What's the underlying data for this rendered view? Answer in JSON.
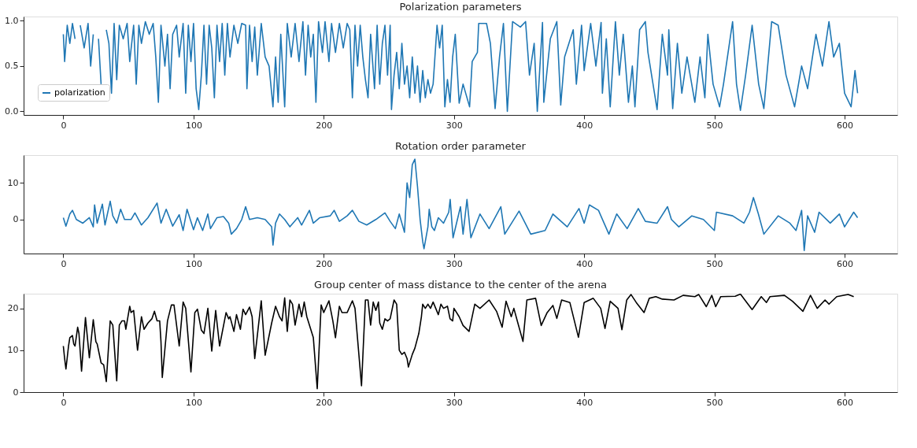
{
  "chart_data": [
    {
      "type": "line",
      "title": "Polarization parameters",
      "legend": "bottom left",
      "xlim": [
        -30.5,
        640.5
      ],
      "xticks": [
        0,
        100,
        200,
        300,
        400,
        500,
        600
      ],
      "ylim": [
        -0.04,
        1.046
      ],
      "yticks": [
        {
          "value": 0,
          "label": "0.0"
        },
        {
          "value": 0.5,
          "label": "0.5"
        },
        {
          "value": 1,
          "label": "1.0"
        }
      ],
      "series": [
        {
          "name": "polarization",
          "color": "#1f77b4",
          "x": [
            0,
            1,
            3,
            5,
            7,
            9,
            11,
            13,
            16,
            19,
            21,
            23,
            25,
            27,
            29,
            31,
            33,
            35,
            37,
            39,
            41,
            43,
            46,
            49,
            51,
            54,
            56,
            58,
            60,
            63,
            66,
            69,
            71,
            73,
            75,
            78,
            80,
            82,
            84,
            87,
            89,
            92,
            94,
            96,
            98,
            100,
            102,
            104,
            106,
            108,
            110,
            112,
            114,
            116,
            118,
            120,
            122,
            124,
            126,
            128,
            131,
            134,
            137,
            140,
            141,
            143,
            145,
            147,
            149,
            152,
            155,
            158,
            160,
            161,
            163,
            165,
            167,
            170,
            172,
            175,
            178,
            181,
            184,
            186,
            188,
            190,
            192,
            194,
            196,
            199,
            201,
            204,
            206,
            209,
            212,
            215,
            218,
            220,
            222,
            224,
            226,
            228,
            230,
            232,
            234,
            236,
            239,
            241,
            243,
            245,
            247,
            249,
            251,
            252,
            254,
            256,
            258,
            260,
            262,
            264,
            266,
            268,
            270,
            272,
            274,
            276,
            278,
            280,
            282,
            284,
            287,
            289,
            291,
            293,
            295,
            297,
            299,
            301,
            304,
            307,
            312,
            314,
            318,
            319,
            325,
            328,
            331.6,
            335,
            338,
            341,
            345,
            351,
            355,
            358,
            361.6,
            364,
            368,
            369,
            374,
            379,
            382,
            385,
            391.6,
            394,
            398,
            400,
            405,
            409,
            413,
            414,
            417,
            420,
            424,
            427,
            430,
            434,
            437,
            439,
            442.6,
            447,
            449,
            456,
            460,
            464,
            465,
            468,
            471.6,
            475,
            479,
            485,
            489,
            492.7,
            495,
            499,
            504,
            507,
            514,
            517,
            520,
            524,
            529,
            534,
            538,
            544,
            549,
            555,
            561.6,
            567,
            571.6,
            578,
            583,
            588,
            591.6,
            596,
            600,
            605,
            608,
            610
          ],
          "values": [
            0.85,
            0.55,
            0.95,
            0.75,
            0.97,
            0.8,
            null,
            0.95,
            0.7,
            0.97,
            0.5,
            0.85,
            null,
            0.8,
            0.3,
            null,
            0.9,
            0.75,
            0.2,
            0.97,
            0.35,
            0.95,
            0.8,
            0.97,
            0.55,
            0.95,
            0.3,
            0.95,
            0.75,
            0.99,
            0.85,
            0.97,
            0.6,
            0.1,
            0.95,
            0.5,
            0.85,
            0.25,
            0.85,
            0.95,
            0.6,
            0.97,
            0.2,
            0.95,
            0.55,
            0.97,
            0.25,
            0.02,
            0.4,
            0.95,
            0.3,
            0.95,
            0.7,
            0.15,
            0.95,
            0.55,
            0.97,
            0.4,
            0.97,
            0.6,
            0.95,
            0.75,
            0.97,
            0.95,
            0.25,
            0.95,
            0.55,
            0.93,
            0.4,
            0.97,
            0.6,
            0.5,
            0.2,
            0.05,
            0.6,
            0.1,
            0.85,
            0.05,
            0.97,
            0.6,
            0.97,
            0.55,
            0.99,
            0.4,
            0.95,
            0.6,
            0.85,
            0.1,
            0.99,
            0.65,
            0.99,
            0.55,
            0.97,
            0.65,
            0.97,
            0.7,
            0.97,
            0.9,
            0.15,
            0.95,
            0.5,
            0.95,
            0.6,
            0.35,
            0.15,
            0.85,
            0.25,
            0.95,
            0.3,
            0.75,
            0.95,
            0.4,
            0.95,
            0.02,
            0.4,
            0.65,
            0.25,
            0.75,
            0.3,
            0.5,
            0.15,
            0.6,
            0.2,
            0.5,
            0.1,
            0.45,
            0.15,
            0.35,
            0.2,
            0.3,
            0.95,
            0.7,
            0.95,
            0.05,
            0.35,
            0.1,
            0.6,
            0.85,
            0.09,
            0.3,
            0.05,
            0.55,
            0.65,
            0.97,
            0.97,
            0.75,
            0.03,
            0.6,
            0.97,
            0.0,
            0.99,
            0.93,
            0.99,
            0.4,
            0.75,
            0.0,
            0.98,
            0.1,
            0.8,
            0.99,
            0.07,
            0.6,
            0.9,
            0.3,
            0.95,
            0.45,
            0.97,
            0.5,
            0.98,
            0.2,
            0.8,
            0.05,
            0.99,
            0.4,
            0.85,
            0.1,
            0.5,
            0.05,
            0.9,
            0.99,
            0.65,
            0.02,
            0.85,
            0.4,
            0.9,
            0.03,
            0.75,
            0.2,
            0.6,
            0.1,
            0.6,
            0.15,
            0.85,
            0.3,
            0.05,
            0.3,
            0.99,
            0.3,
            0.01,
            0.4,
            0.95,
            0.3,
            0.03,
            0.99,
            0.95,
            0.4,
            0.05,
            0.5,
            0.25,
            0.85,
            0.5,
            0.99,
            0.6,
            0.75,
            0.2,
            0.05,
            0.45,
            0.2
          ]
        }
      ]
    },
    {
      "type": "line",
      "title": "Rotation order parameter",
      "xlim": [
        -30.5,
        640.5
      ],
      "xticks": [
        0,
        100,
        200,
        300,
        400,
        500,
        600
      ],
      "ylim": [
        -9.3,
        17.6
      ],
      "yticks": [
        0,
        10
      ],
      "series": [
        {
          "color": "#1f77b4",
          "x": [
            0,
            2,
            5,
            7,
            10,
            15,
            20,
            23,
            24,
            26,
            30,
            32,
            36,
            38,
            41,
            44,
            47,
            52,
            55,
            60,
            65,
            72,
            75,
            79,
            84,
            89,
            92,
            95,
            100,
            103,
            107,
            111,
            113,
            118,
            123,
            127,
            129,
            133,
            137,
            140,
            143,
            149,
            155,
            160,
            161,
            163,
            166,
            170,
            174,
            180,
            183,
            189,
            192,
            197,
            205,
            208,
            212,
            218,
            222,
            227,
            233,
            240,
            247,
            251,
            255,
            258,
            262,
            264,
            266,
            268,
            270,
            272,
            274,
            276,
            277,
            280,
            281,
            283,
            285,
            288,
            292,
            296,
            297.1,
            299.3,
            305,
            307,
            310,
            313,
            320,
            327,
            336,
            339,
            350,
            359,
            370,
            376,
            387,
            396,
            400,
            404,
            411,
            419,
            425,
            433,
            441.6,
            447,
            456,
            464,
            467,
            472.7,
            482.7,
            491.6,
            500,
            501.6,
            514,
            522.7,
            527,
            530,
            533.8,
            538,
            549,
            558,
            562.7,
            567,
            569,
            571.6,
            577,
            580.4,
            589,
            596,
            600,
            607,
            610
          ],
          "values": [
            0.5,
            -1.8,
            1.5,
            2.5,
            0,
            -1,
            0.5,
            -2,
            4,
            -1,
            4.2,
            -1.5,
            5,
            1,
            -1,
            2.8,
            0,
            0,
            1.8,
            -1.5,
            0.5,
            4.5,
            -1,
            2.8,
            -1.8,
            1.3,
            -3,
            2.8,
            -2.8,
            0.5,
            -3,
            1.5,
            -2.5,
            0.5,
            0.8,
            -1,
            -4,
            -2.5,
            0,
            3.5,
            0,
            0.5,
            0,
            -2,
            -7,
            -1,
            1.5,
            0,
            -2,
            0.5,
            -1.5,
            2.5,
            -1,
            0.5,
            1,
            2.5,
            -0.5,
            1,
            2.5,
            -0.5,
            -1.5,
            0,
            1.8,
            -0.5,
            -2.5,
            1.5,
            -3.5,
            10,
            6,
            15,
            16.5,
            9,
            0,
            -6,
            -8,
            -2,
            2.8,
            -2,
            -3,
            0.5,
            -1,
            2,
            5.5,
            -5,
            3.5,
            -4,
            5.5,
            -5,
            1.5,
            -2.5,
            3.5,
            -4,
            2.3,
            -4,
            -3,
            1.5,
            -2,
            3,
            -1,
            4,
            2.5,
            -4,
            1.5,
            -2.5,
            3,
            -0.5,
            -1,
            3.5,
            0,
            -2,
            1,
            0,
            -3,
            2,
            1,
            -1,
            2,
            6,
            1.5,
            -4,
            1,
            -1,
            -3,
            2.5,
            -8.5,
            1,
            -3.5,
            2,
            -1,
            1.5,
            -2,
            2,
            0.5
          ]
        }
      ]
    },
    {
      "type": "line",
      "title": "Group center of mass distance to the center of the arena",
      "xlim": [
        -30.5,
        640.5
      ],
      "xticks": [
        0,
        100,
        200,
        300,
        400,
        500,
        600
      ],
      "ylim": [
        0,
        23.5
      ],
      "yticks": [
        0,
        10,
        20
      ],
      "series": [
        {
          "color": "#000000",
          "x": [
            0,
            1,
            2,
            4,
            5,
            7,
            8,
            9,
            11,
            12,
            14,
            17,
            20,
            23,
            25,
            26,
            29,
            31,
            33,
            36,
            38,
            41,
            43,
            45,
            47,
            48,
            51,
            52,
            54,
            57,
            60,
            62,
            65,
            68,
            70,
            72,
            74,
            75,
            76,
            80,
            83,
            85,
            89,
            92,
            94,
            98,
            101,
            103,
            106,
            108,
            111,
            114,
            117,
            120,
            125,
            127,
            128,
            131,
            133,
            136,
            138,
            140,
            143,
            145,
            147,
            152,
            155,
            160,
            163,
            166,
            168,
            170,
            172,
            174,
            176,
            178,
            181,
            183,
            185,
            187,
            192,
            195,
            198,
            200,
            204,
            207,
            209,
            212,
            214,
            218,
            222,
            224,
            229,
            232,
            234,
            236,
            238,
            240,
            242,
            243,
            245,
            247,
            249,
            251,
            254,
            256,
            258,
            260,
            262,
            264,
            265,
            268,
            270,
            273,
            275,
            276,
            278,
            280,
            282,
            284,
            286,
            288,
            290,
            292,
            295,
            297,
            299,
            300,
            304,
            307,
            311.6,
            316,
            320,
            327,
            332.7,
            337,
            340,
            344,
            346,
            349,
            353,
            356,
            362.7,
            367,
            371.6,
            376,
            379,
            382.7,
            389,
            395.6,
            400,
            407,
            412.7,
            416,
            420,
            426,
            429,
            432.7,
            436,
            440,
            446,
            450,
            455,
            460,
            469,
            476,
            485,
            488,
            493.8,
            498,
            501,
            504.9,
            516,
            520,
            529,
            536,
            540,
            542.7,
            553.8,
            560,
            568,
            573.8,
            579,
            585,
            588,
            594,
            602.7,
            607
          ],
          "values": [
            11,
            8,
            5.5,
            11,
            13,
            13.5,
            11.5,
            11,
            15.5,
            14,
            5,
            17.8,
            8.2,
            17.3,
            12,
            11.5,
            7,
            6.5,
            2.5,
            17,
            16,
            2.7,
            16,
            17,
            17,
            15,
            20.5,
            19,
            19.5,
            10,
            18,
            15,
            16.5,
            17.5,
            19.3,
            17,
            17,
            12,
            3.5,
            17,
            20.8,
            20.8,
            11,
            21.5,
            20,
            4.8,
            19,
            19.8,
            14.8,
            14,
            20,
            9.8,
            19.5,
            11,
            19,
            17.5,
            18,
            14.5,
            18.5,
            15,
            19.8,
            18.5,
            20.3,
            18,
            8,
            21.8,
            8.8,
            16.5,
            20.5,
            18,
            17,
            22.5,
            14.5,
            22,
            21,
            16,
            21,
            18,
            21.5,
            18,
            13,
            0.8,
            20.8,
            19,
            21.8,
            17,
            13,
            20.5,
            19,
            19,
            21.8,
            20,
            1.5,
            22,
            22,
            16,
            21.5,
            19.5,
            21.5,
            16.5,
            15,
            17.5,
            17,
            17.5,
            22,
            21,
            10,
            9,
            9.5,
            8,
            6,
            9,
            10.5,
            14,
            18,
            21,
            20,
            21,
            20,
            21.5,
            20,
            18.5,
            21,
            20,
            20.5,
            17.5,
            17,
            20,
            18,
            15.9,
            14.5,
            21,
            20,
            22,
            19.3,
            15.5,
            21.7,
            18,
            20,
            16.6,
            12.1,
            22,
            22.4,
            15.9,
            19,
            20.7,
            17.6,
            22,
            21.4,
            13.1,
            21.4,
            22.4,
            20,
            15.2,
            21.7,
            20,
            14.9,
            22,
            23.3,
            21.4,
            19,
            22.4,
            22.8,
            22.2,
            22,
            23.1,
            22.8,
            23.3,
            20.4,
            23.1,
            20.4,
            22.8,
            22.9,
            23.4,
            19.7,
            22.8,
            21.4,
            22.8,
            23.1,
            21.7,
            19.3,
            23.1,
            20,
            22,
            21,
            22.8,
            23.3,
            22.8
          ]
        }
      ]
    }
  ]
}
